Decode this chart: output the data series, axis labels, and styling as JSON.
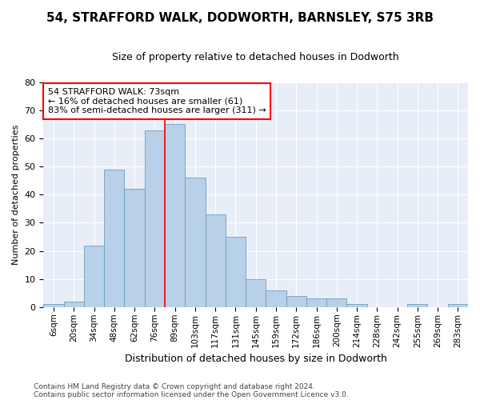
{
  "title1": "54, STRAFFORD WALK, DODWORTH, BARNSLEY, S75 3RB",
  "title2": "Size of property relative to detached houses in Dodworth",
  "xlabel": "Distribution of detached houses by size in Dodworth",
  "ylabel": "Number of detached properties",
  "footnote1": "Contains HM Land Registry data © Crown copyright and database right 2024.",
  "footnote2": "Contains public sector information licensed under the Open Government Licence v3.0.",
  "categories": [
    "6sqm",
    "20sqm",
    "34sqm",
    "48sqm",
    "62sqm",
    "76sqm",
    "89sqm",
    "103sqm",
    "117sqm",
    "131sqm",
    "145sqm",
    "159sqm",
    "172sqm",
    "186sqm",
    "200sqm",
    "214sqm",
    "228sqm",
    "242sqm",
    "255sqm",
    "269sqm",
    "283sqm"
  ],
  "values": [
    1,
    2,
    22,
    49,
    42,
    63,
    65,
    46,
    33,
    25,
    10,
    6,
    4,
    3,
    3,
    1,
    0,
    0,
    1,
    0,
    1
  ],
  "bar_color": "#b8d0e8",
  "bar_edge_color": "#6a9ec0",
  "vline_x": 5.5,
  "vline_color": "red",
  "annotation_line1": "54 STRAFFORD WALK: 73sqm",
  "annotation_line2": "← 16% of detached houses are smaller (61)",
  "annotation_line3": "83% of semi-detached houses are larger (311) →",
  "annotation_box_color": "white",
  "annotation_box_edge_color": "red",
  "ylim": [
    0,
    80
  ],
  "yticks": [
    0,
    10,
    20,
    30,
    40,
    50,
    60,
    70,
    80
  ],
  "background_color": "#e8eef8",
  "grid_color": "white",
  "title_fontsize": 11,
  "subtitle_fontsize": 9,
  "ylabel_fontsize": 8,
  "xlabel_fontsize": 9,
  "tick_fontsize": 8,
  "xtick_fontsize": 7.5,
  "footnote_fontsize": 6.5
}
